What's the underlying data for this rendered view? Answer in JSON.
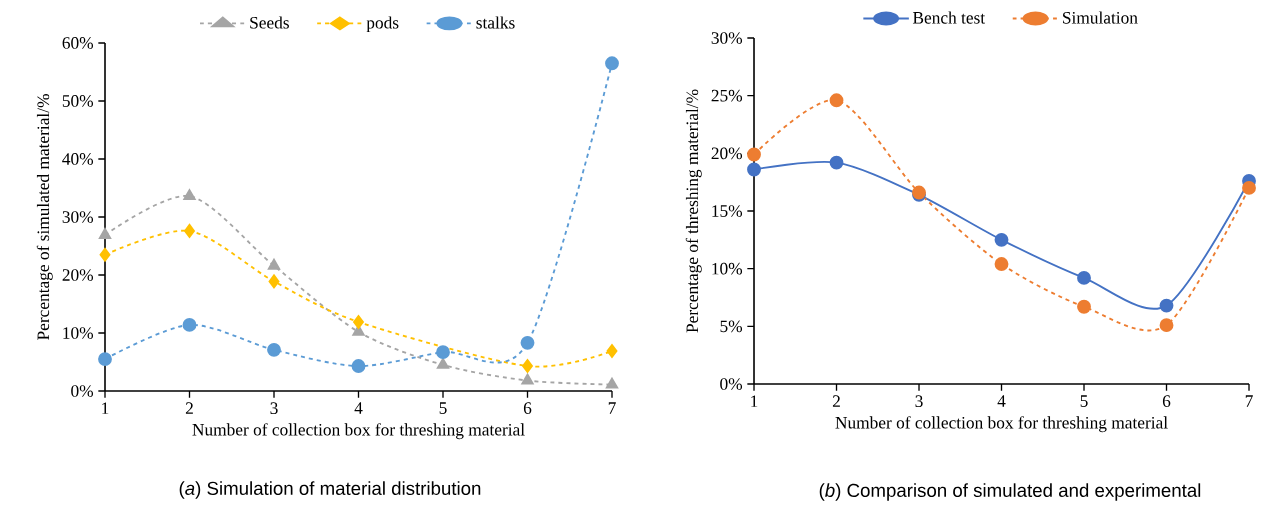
{
  "chart_data": [
    {
      "type": "line",
      "categories": [
        "1",
        "2",
        "3",
        "4",
        "5",
        "6",
        "7"
      ],
      "xlabel": "Number of collection box for threshing material",
      "ylabel": "Percentage of simulated material/%",
      "ylim": [
        0,
        60
      ],
      "yticks": [
        {
          "value": 0,
          "label": "0%"
        },
        {
          "value": 10,
          "label": "10%"
        },
        {
          "value": 20,
          "label": "20%"
        },
        {
          "value": 30,
          "label": "30%"
        },
        {
          "value": 40,
          "label": "40%"
        },
        {
          "value": 50,
          "label": "50%"
        },
        {
          "value": 60,
          "label": "60%"
        }
      ],
      "legend": "top",
      "annotations": [
        "(*a*)  Simulation of material distribution"
      ],
      "series": [
        {
          "name": "Seeds",
          "color": "#a5a5a5",
          "marker": "triangle",
          "line_style": "dashed",
          "values": [
            26.9,
            33.6,
            21.6,
            10.2,
            4.5,
            1.8,
            1.1
          ]
        },
        {
          "name": "pods",
          "color": "#ffc000",
          "marker": "diamond",
          "line_style": "dashed",
          "values": [
            23.5,
            27.6,
            18.9,
            11.9,
            null,
            4.3,
            6.9
          ]
        },
        {
          "name": "stalks",
          "color": "#5b9bd5",
          "marker": "circle",
          "line_style": "dashed",
          "values": [
            5.5,
            11.4,
            7.1,
            4.3,
            6.7,
            8.3,
            56.5
          ]
        }
      ]
    },
    {
      "type": "line",
      "categories": [
        "1",
        "2",
        "3",
        "4",
        "5",
        "6",
        "7"
      ],
      "xlabel": "Number of collection box for threshing material",
      "ylabel": "Percentage of threshing material/%",
      "ylim": [
        0,
        30
      ],
      "yticks": [
        {
          "value": 0,
          "label": "0%"
        },
        {
          "value": 5,
          "label": "5%"
        },
        {
          "value": 10,
          "label": "10%"
        },
        {
          "value": 15,
          "label": "15%"
        },
        {
          "value": 20,
          "label": "20%"
        },
        {
          "value": 25,
          "label": "25%"
        },
        {
          "value": 30,
          "label": "30%"
        }
      ],
      "legend": "top",
      "annotations": [
        "(*b*) Comparison of simulated and experimental"
      ],
      "series": [
        {
          "name": "Bench test",
          "color": "#4472c4",
          "marker": "circle",
          "line_style": "solid",
          "values": [
            18.6,
            19.2,
            16.4,
            12.5,
            9.2,
            6.8,
            17.6
          ]
        },
        {
          "name": "Simulation",
          "color": "#ed7d31",
          "marker": "circle",
          "line_style": "dashed",
          "values": [
            19.9,
            24.6,
            16.6,
            10.4,
            6.7,
            5.1,
            17.0
          ]
        }
      ]
    }
  ]
}
